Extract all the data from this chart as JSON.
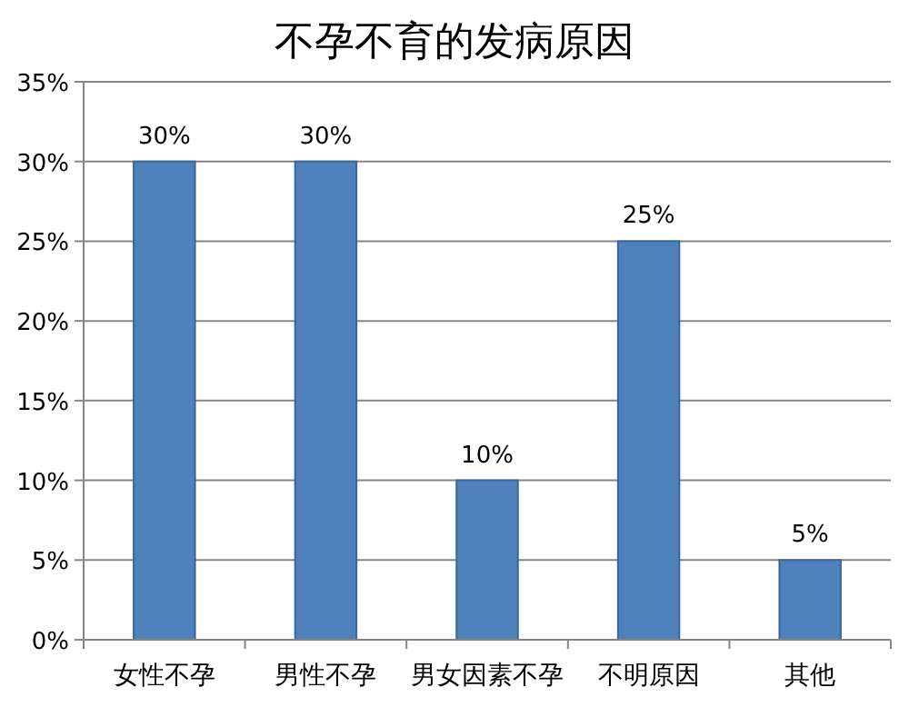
{
  "chart_data": {
    "type": "bar",
    "title": "不孕不育的发病原因",
    "categories": [
      "女性不孕",
      "男性不孕",
      "男女因素不孕",
      "不明原因",
      "其他"
    ],
    "values": [
      30,
      30,
      10,
      25,
      5
    ],
    "value_labels": [
      "30%",
      "30%",
      "10%",
      "25%",
      "5%"
    ],
    "color": "#4f81bd",
    "ylim": [
      0,
      35
    ],
    "yticks": [
      {
        "value": 0,
        "label": "0%"
      },
      {
        "value": 5,
        "label": "5%"
      },
      {
        "value": 10,
        "label": "10%"
      },
      {
        "value": 15,
        "label": "15%"
      },
      {
        "value": 20,
        "label": "20%"
      },
      {
        "value": 25,
        "label": "25%"
      },
      {
        "value": 30,
        "label": "30%"
      },
      {
        "value": 35,
        "label": "35%"
      }
    ],
    "grid": "y"
  }
}
